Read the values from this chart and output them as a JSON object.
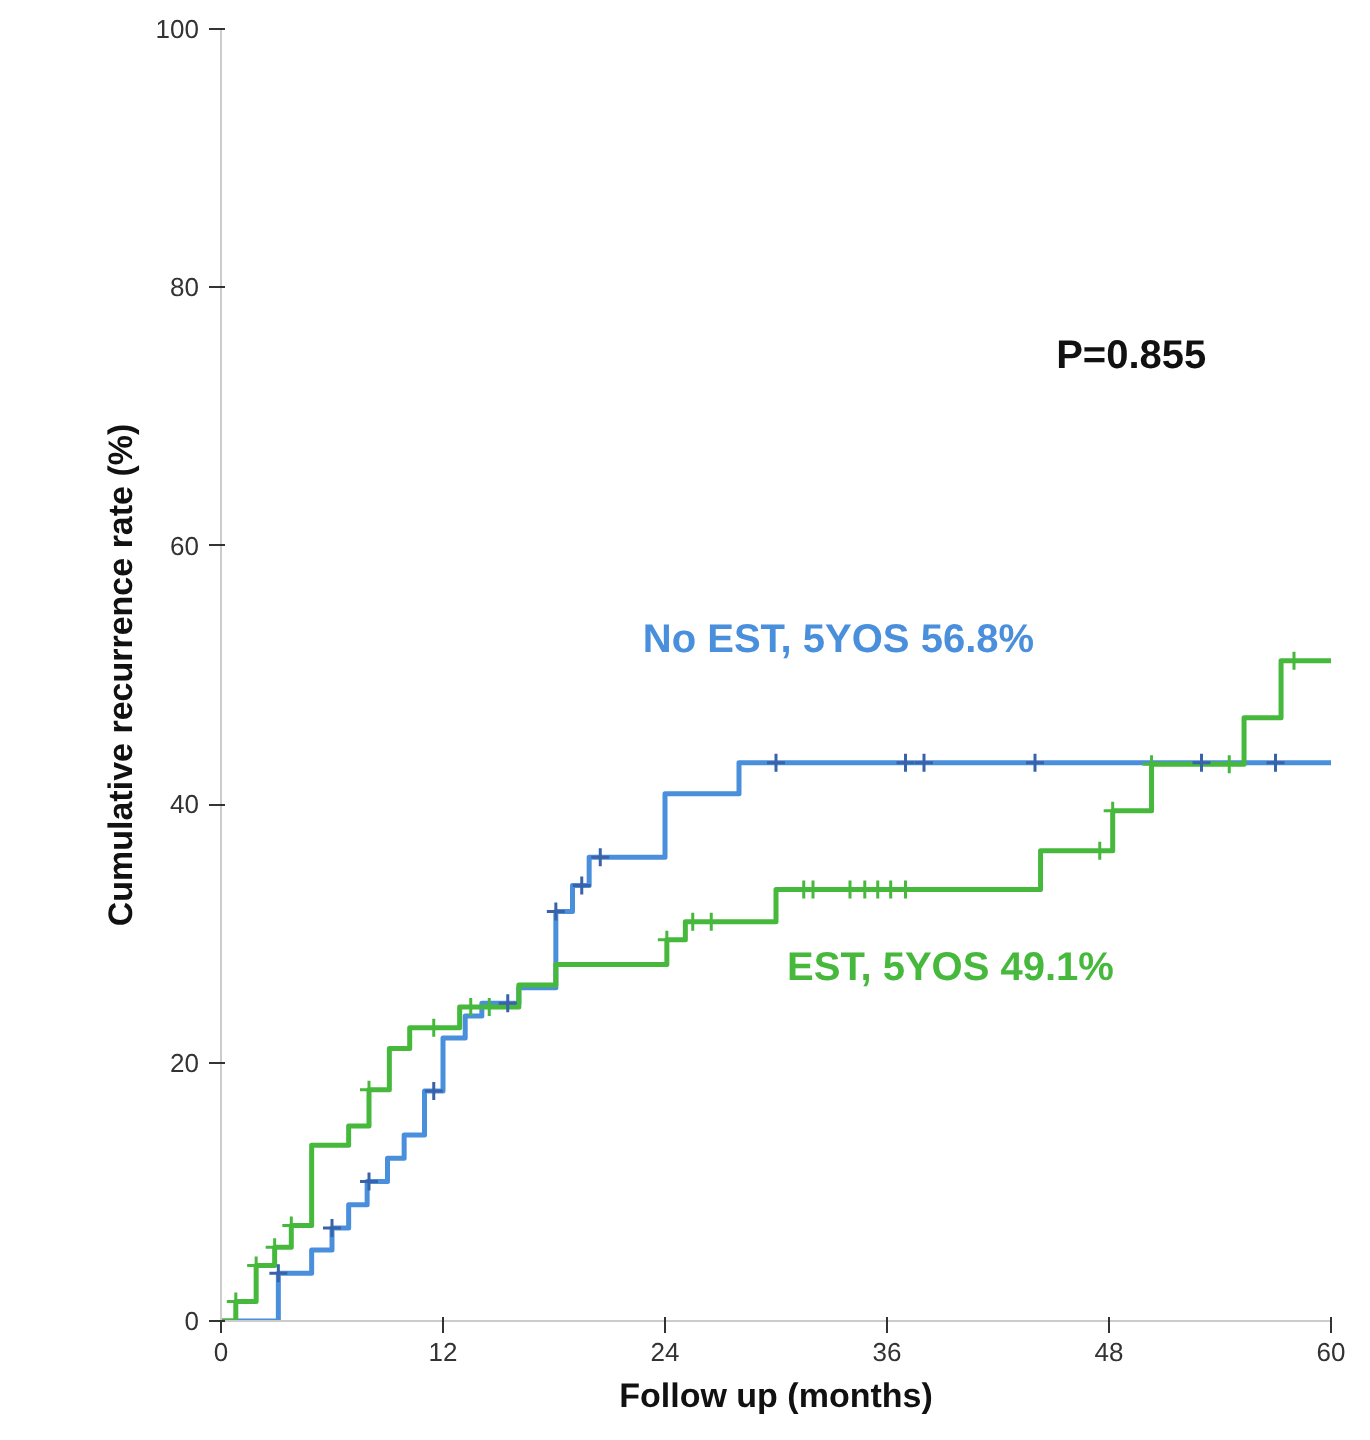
{
  "chart_data": {
    "type": "step",
    "xlabel": "Follow up (months)",
    "ylabel": "Cumulative recurrence rate (%)",
    "xlim": [
      0,
      60
    ],
    "xticks": [
      0,
      12,
      24,
      36,
      48,
      60
    ],
    "ylim": [
      0,
      100
    ],
    "yticks": [
      0,
      20,
      40,
      60,
      80,
      100
    ],
    "grid": false,
    "annotations": [
      "P=0.855"
    ],
    "series": [
      {
        "name": "No EST, 5YOS 56.8%",
        "color": "#4a8fdc",
        "x": [
          0,
          3.1,
          4.9,
          6.0,
          6.9,
          7.9,
          9.0,
          9.9,
          11.0,
          12.0,
          13.2,
          14.1,
          16.1,
          18.1,
          19.0,
          19.9,
          24.0,
          28.0,
          60
        ],
        "values": [
          0,
          3.7,
          5.5,
          7.2,
          9.0,
          10.8,
          12.6,
          14.4,
          17.8,
          21.9,
          23.6,
          24.6,
          25.8,
          31.7,
          33.7,
          35.9,
          40.8,
          43.2,
          43.2
        ]
      },
      {
        "name": "EST, 5YOS 49.1%",
        "color": "#46b93c",
        "x": [
          0,
          0.8,
          1.9,
          2.9,
          3.8,
          4.9,
          6.9,
          8.0,
          9.1,
          10.2,
          12.9,
          16.1,
          18.1,
          24.1,
          25.1,
          30.0,
          44.3,
          48.2,
          50.3,
          55.3,
          57.3,
          60
        ],
        "values": [
          0,
          1.5,
          4.3,
          5.7,
          7.4,
          13.6,
          15.1,
          17.9,
          21.1,
          22.7,
          24.3,
          26.0,
          27.6,
          29.5,
          30.9,
          33.4,
          36.4,
          39.5,
          43.1,
          46.7,
          51.1,
          51.1
        ]
      },
      {
        "type": "scatter",
        "marker": "cross",
        "color": "#3a62a8",
        "x": [
          3.1,
          6.0,
          8.0,
          11.5,
          15.5,
          18.1,
          19.5,
          20.5,
          30,
          37,
          38,
          44,
          53,
          57
        ],
        "values": [
          3.7,
          7.2,
          10.8,
          17.8,
          24.6,
          31.7,
          33.7,
          35.9,
          43.2,
          43.2,
          43.2,
          43.2,
          43.2,
          43.2
        ]
      },
      {
        "type": "scatter",
        "marker": "cross",
        "color": "#46b93c",
        "x": [
          0.8,
          1.9,
          2.9,
          3.8,
          8.0,
          11.5,
          13.5,
          14.5,
          24.1,
          25.5,
          26.5,
          31.5,
          32,
          34,
          34.8,
          35.5,
          36.2,
          37,
          47.5,
          48.2,
          50.3,
          54.5,
          58
        ],
        "values": [
          1.5,
          4.3,
          5.7,
          7.4,
          17.9,
          22.7,
          24.3,
          24.3,
          29.5,
          30.9,
          30.9,
          33.4,
          33.4,
          33.4,
          33.4,
          33.4,
          33.4,
          33.4,
          36.4,
          39.5,
          43.1,
          43.1,
          51.1
        ]
      }
    ]
  }
}
